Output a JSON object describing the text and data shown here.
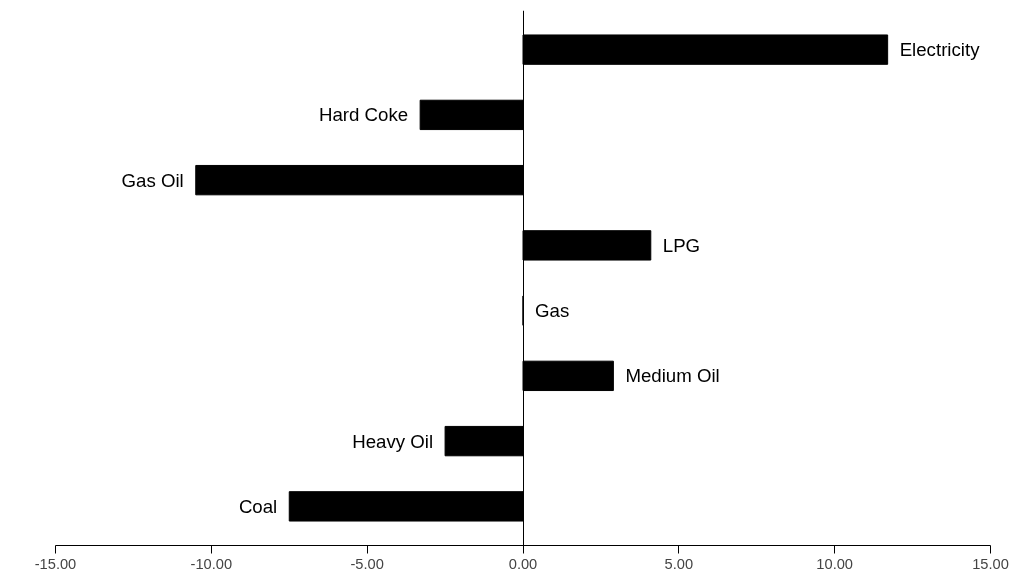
{
  "chart_data": {
    "type": "bar",
    "orientation": "horizontal",
    "categories": [
      "Electricity",
      "Hard Coke",
      "Gas Oil",
      "LPG",
      "Gas",
      "Medium Oil",
      "Heavy Oil",
      "Coal"
    ],
    "values": [
      11.7,
      -3.3,
      -10.5,
      4.1,
      0,
      2.9,
      -2.5,
      -7.5
    ],
    "color": "#000000",
    "xlim": [
      -15,
      15
    ],
    "xticks": [
      {
        "value": -15,
        "label": "-15.00"
      },
      {
        "value": -10,
        "label": "-10.00"
      },
      {
        "value": -5,
        "label": "-5.00"
      },
      {
        "value": 0,
        "label": "0.00"
      },
      {
        "value": 5,
        "label": "5.00"
      },
      {
        "value": 10,
        "label": "10.00"
      },
      {
        "value": 15,
        "label": "15.00"
      }
    ],
    "tick_labels": "x"
  }
}
